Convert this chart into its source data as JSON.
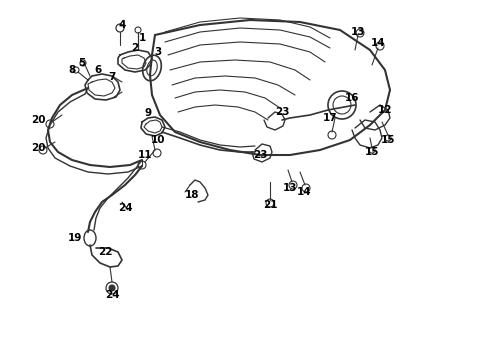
{
  "background_color": "#ffffff",
  "line_color": "#333333",
  "fig_width": 4.9,
  "fig_height": 3.6,
  "dpi": 100
}
